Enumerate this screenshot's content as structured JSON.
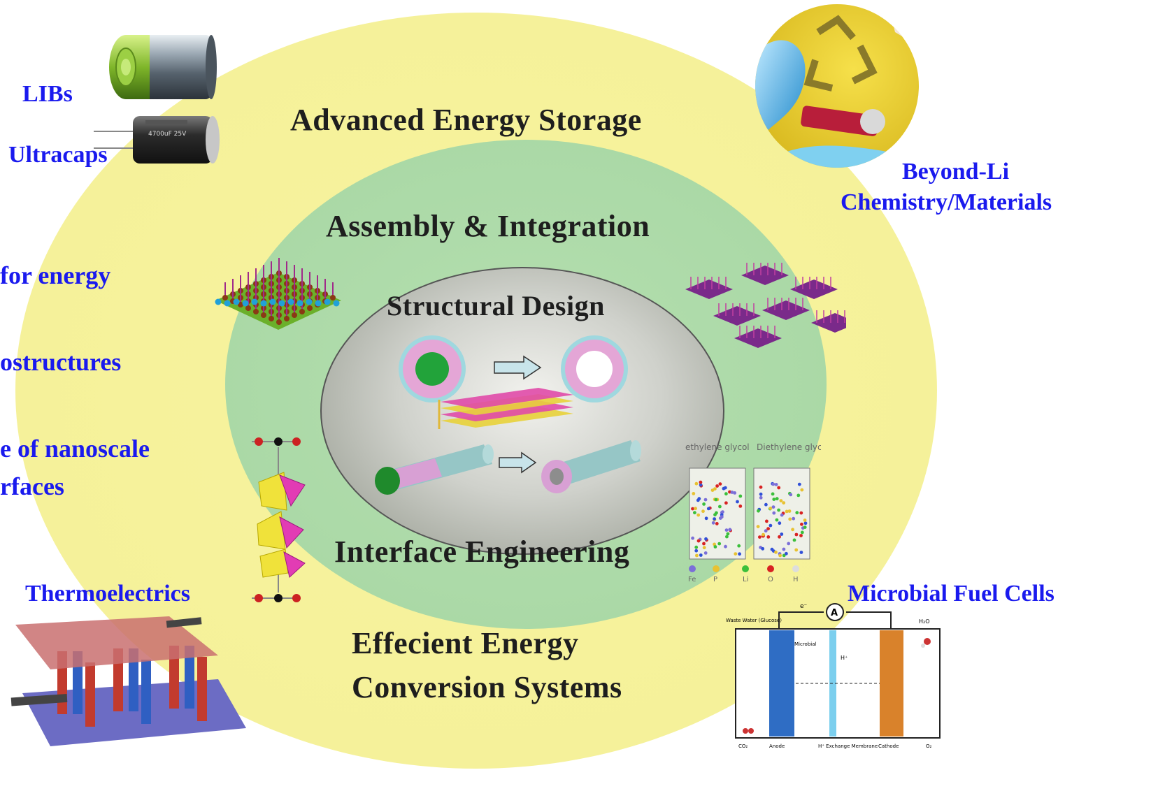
{
  "headings": {
    "storage": "Advanced Energy Storage",
    "assembly": "Assembly & Integration",
    "structural": "Structural Design",
    "interface": "Interface Engineering",
    "conversion_line1": "Effecient Energy",
    "conversion_line2": "Conversion Systems"
  },
  "side_labels": {
    "libs": "LIBs",
    "ultracaps": "Ultracaps",
    "beyond_line1": "Beyond-Li",
    "beyond_line2": "Chemistry/Materials",
    "thermoelectrics": "Thermoelectrics",
    "fuel_cells": "Microbial Fuel Cells"
  },
  "left_list": [
    "for energy",
    "ostructures",
    "e of nanoscale",
    "rfaces"
  ],
  "capacitor_label": "4700uF 25V",
  "molecule_labels": [
    "ethylene glycol",
    "Diethylene glycol"
  ],
  "element_legend": [
    "Fe",
    "P",
    "Li",
    "O",
    "H"
  ],
  "fuel_cell_labels": {
    "ammeter": "A",
    "electron": "e⁻",
    "waste_water": "Waste Water (Glucose)",
    "microbial": "Microbial",
    "anode": "Anode",
    "cathode": "Cathode",
    "membrane": "H⁺ Exchange Membrane",
    "proton": "H⁺",
    "water": "H₂O",
    "co2": "CO₂",
    "o2": "O₂"
  },
  "colors": {
    "outer_ring": "#f6f29a",
    "middle_ring": "#a9d8a5",
    "core": "#a9ada4",
    "side_label": "#1a1aee",
    "heading": "#1e1e1e"
  }
}
